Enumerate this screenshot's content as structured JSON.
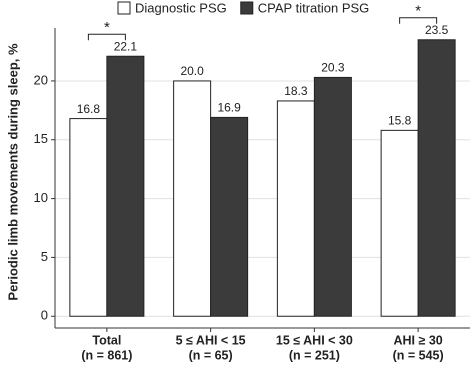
{
  "chart_data": {
    "type": "bar",
    "y_label": "Periodic limb movements during sleep, %",
    "categories": [
      [
        "Total",
        "(n = 861)"
      ],
      [
        "5 ≤ AHI < 15",
        "(n = 65)"
      ],
      [
        "15 ≤ AHI < 30",
        "(n = 251)"
      ],
      [
        "AHI ≥ 30",
        "(n = 545)"
      ]
    ],
    "series": [
      {
        "name": "Diagnostic PSG",
        "color": "#ffffff",
        "values": [
          16.8,
          20,
          18.3,
          15.8
        ],
        "value_labels": [
          "16.8",
          "20.0",
          "18.3",
          "15.8"
        ]
      },
      {
        "name": "CPAP titration PSG",
        "color": "#3b3b3b",
        "values": [
          22.1,
          16.9,
          20.3,
          23.5
        ],
        "value_labels": [
          "22.1",
          "16.9",
          "20.3",
          "23.5"
        ]
      }
    ],
    "annotations": [
      {
        "category": 0,
        "label": "*"
      },
      {
        "category": 3,
        "label": "*"
      }
    ],
    "ylim": [
      -1,
      24.5
    ],
    "yticks": [
      0,
      5,
      10,
      15,
      20
    ],
    "grid": true,
    "legend": "top"
  }
}
